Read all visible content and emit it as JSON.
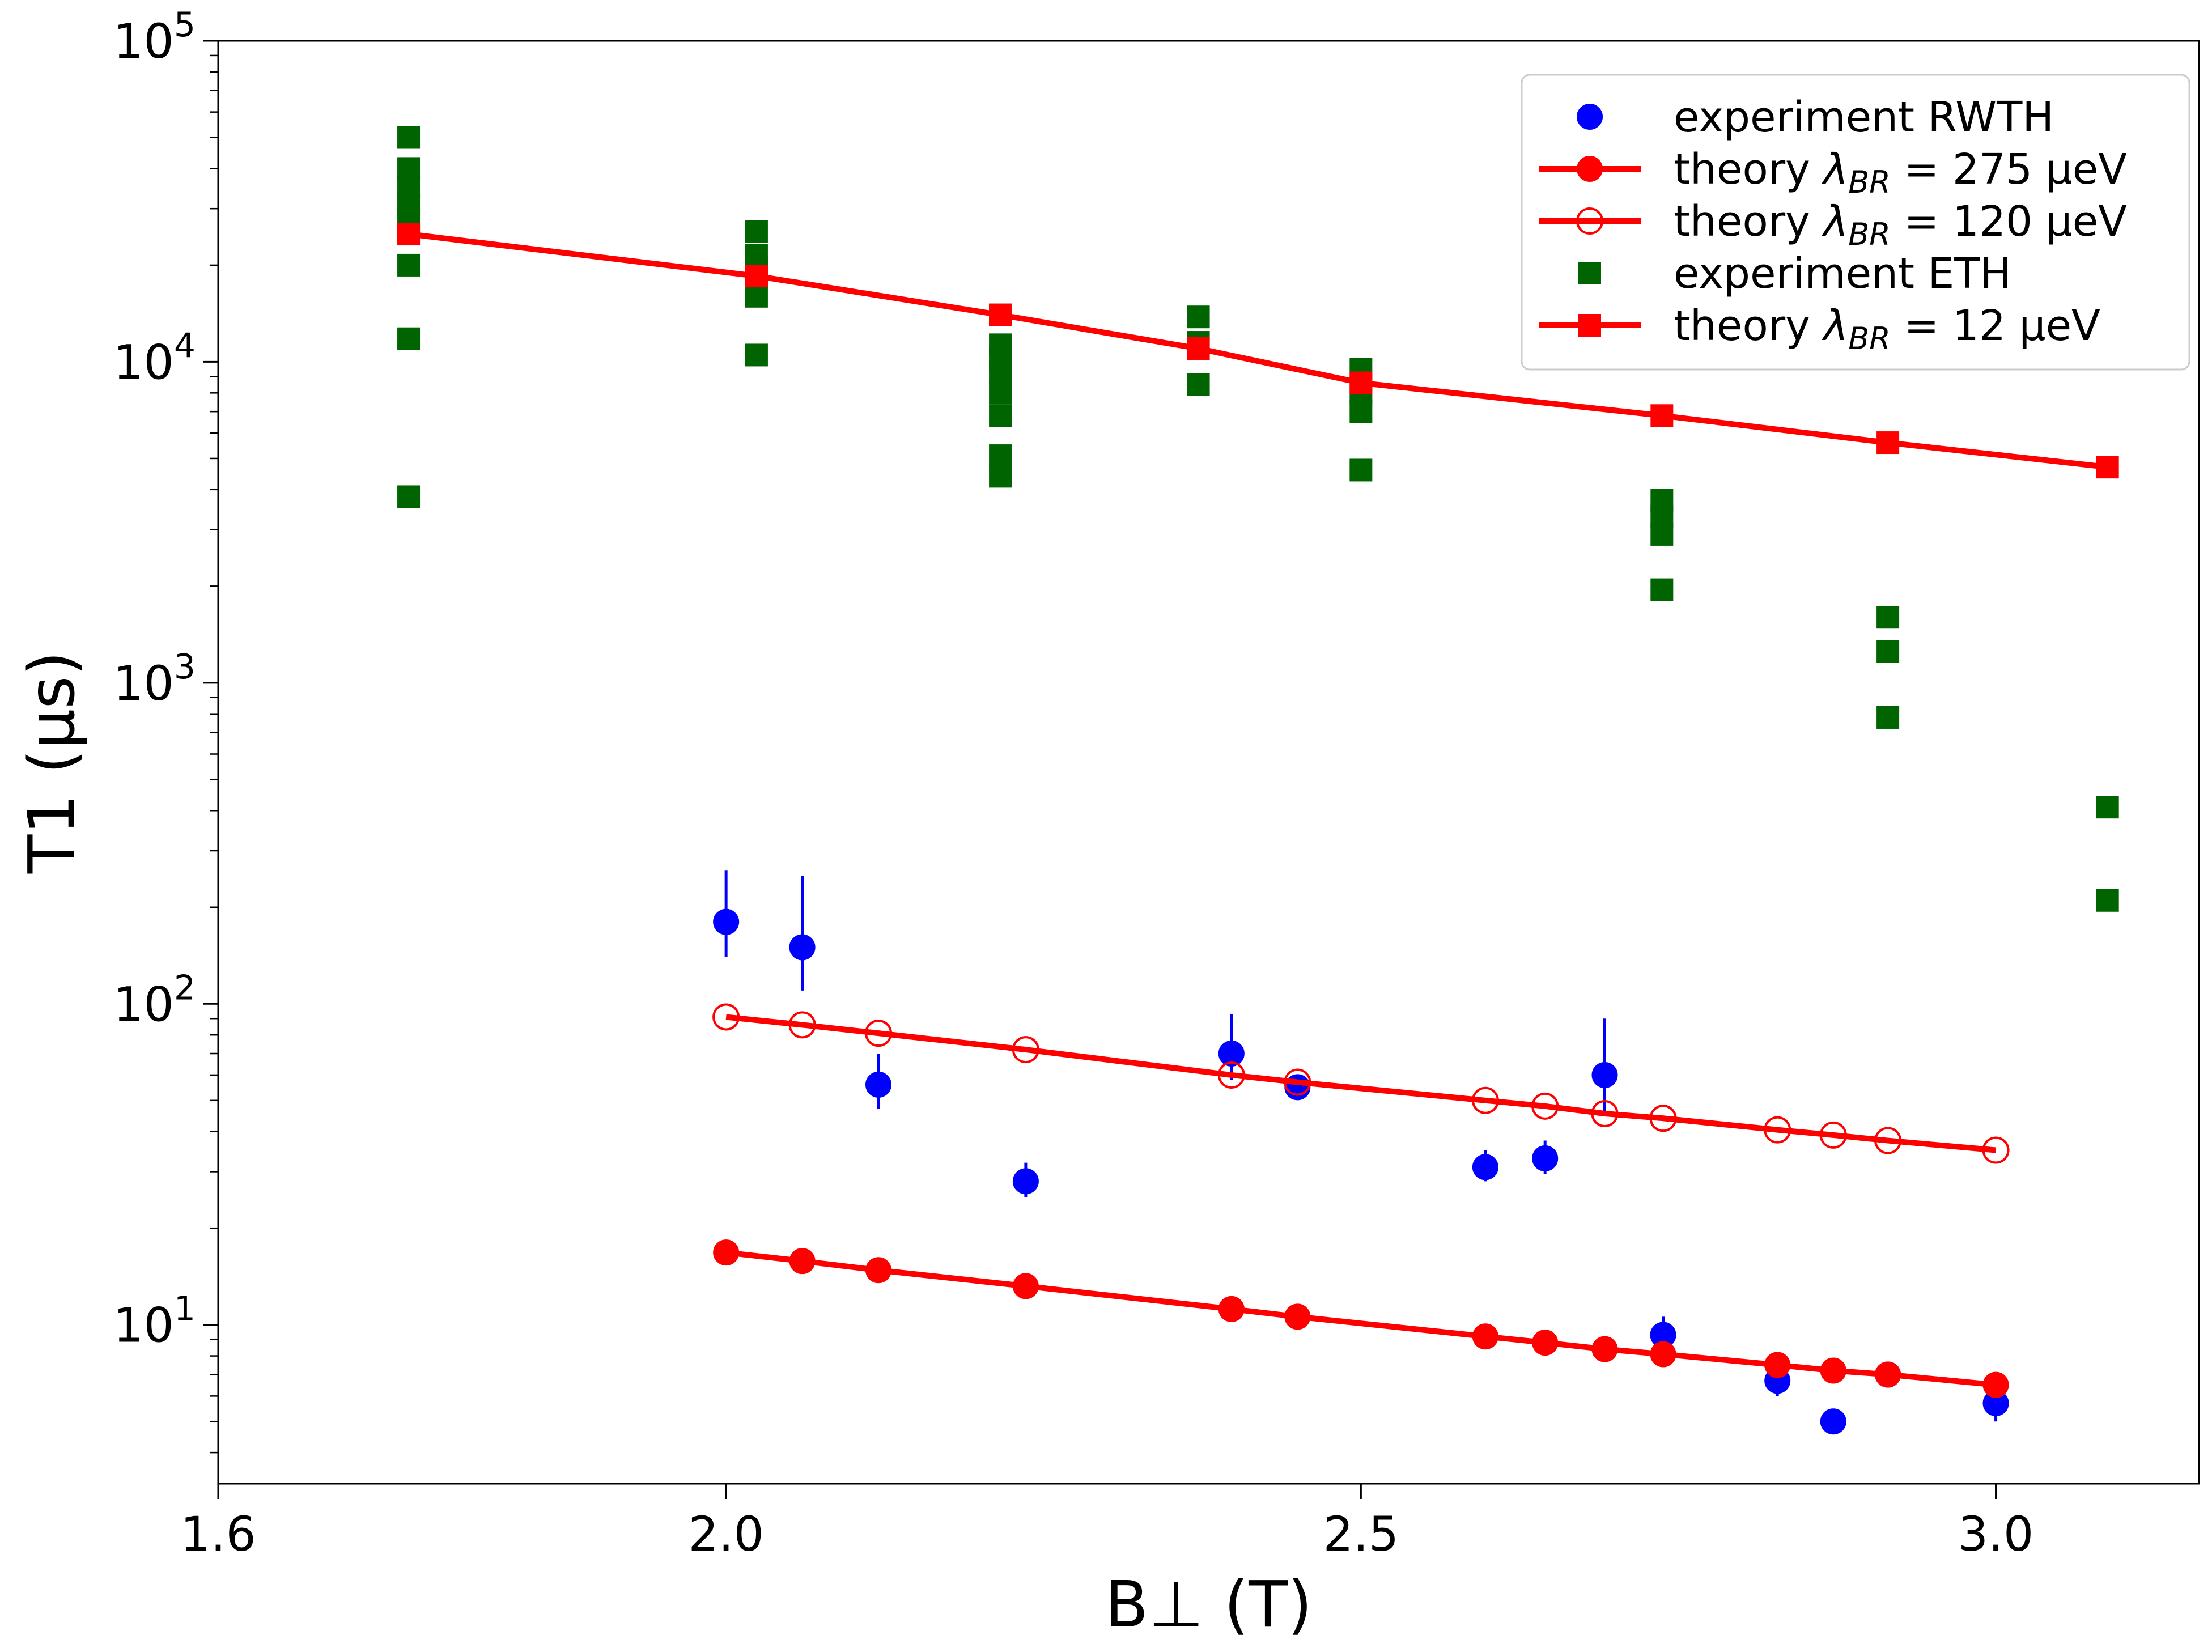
{
  "chart_data": {
    "type": "scatter",
    "title": "",
    "xlabel": "B⊥ (T)",
    "ylabel": "T1 (μs)",
    "xscale": "linear",
    "yscale": "log",
    "xlim": [
      1.6,
      3.16
    ],
    "ylim": [
      3.2,
      100000
    ],
    "xticks": [
      1.6,
      2.0,
      2.5,
      3.0
    ],
    "xtick_labels": [
      "1.6",
      "2.0",
      "2.5",
      "3.0"
    ],
    "yticks": [
      10,
      100,
      1000,
      10000,
      100000
    ],
    "ytick_labels": [
      {
        "base": "10",
        "exp": "1"
      },
      {
        "base": "10",
        "exp": "2"
      },
      {
        "base": "10",
        "exp": "3"
      },
      {
        "base": "10",
        "exp": "4"
      },
      {
        "base": "10",
        "exp": "5"
      }
    ],
    "legend_position": "top-right",
    "series": [
      {
        "name": "experiment RWTH",
        "legend_label": {
          "text": "experiment RWTH"
        },
        "marker": "circle",
        "filled": true,
        "line": false,
        "color": "#0000ff",
        "points": [
          {
            "x": 2.0,
            "y": 180,
            "ylo": 140,
            "yhi": 260
          },
          {
            "x": 2.06,
            "y": 150,
            "ylo": 110,
            "yhi": 250
          },
          {
            "x": 2.12,
            "y": 56,
            "ylo": 47,
            "yhi": 70
          },
          {
            "x": 2.236,
            "y": 28,
            "ylo": 25,
            "yhi": 32
          },
          {
            "x": 2.398,
            "y": 70,
            "ylo": 58,
            "yhi": 93
          },
          {
            "x": 2.45,
            "y": 55,
            "ylo": 52,
            "yhi": 58
          },
          {
            "x": 2.598,
            "y": 31,
            "ylo": 28,
            "yhi": 35
          },
          {
            "x": 2.645,
            "y": 33,
            "ylo": 29.5,
            "yhi": 37.5
          },
          {
            "x": 2.692,
            "y": 60,
            "ylo": 45,
            "yhi": 90
          },
          {
            "x": 2.738,
            "y": 9.3,
            "ylo": 8.5,
            "yhi": 10.6
          },
          {
            "x": 2.828,
            "y": 6.7,
            "ylo": 6.0,
            "yhi": 7.4
          },
          {
            "x": 2.872,
            "y": 5.0,
            "ylo": 4.8,
            "yhi": 5.3
          },
          {
            "x": 2.915,
            "y": 7.0,
            "ylo": 6.6,
            "yhi": 7.5
          },
          {
            "x": 3.0,
            "y": 5.7,
            "ylo": 5.0,
            "yhi": 6.3
          }
        ]
      },
      {
        "name": "theory lambda_BR = 275 ueV",
        "legend_label": {
          "pre": "theory ",
          "sym": "λ",
          "sub": "BR",
          "post": " = 275 μeV"
        },
        "marker": "circle",
        "filled": true,
        "line": true,
        "color": "#ff0000",
        "x": [
          2.0,
          2.06,
          2.12,
          2.236,
          2.398,
          2.45,
          2.598,
          2.645,
          2.692,
          2.738,
          2.828,
          2.872,
          2.915,
          3.0
        ],
        "y": [
          16.8,
          15.8,
          14.8,
          13.2,
          11.2,
          10.6,
          9.2,
          8.8,
          8.4,
          8.1,
          7.5,
          7.2,
          7.0,
          6.5
        ]
      },
      {
        "name": "theory lambda_BR = 120 ueV",
        "legend_label": {
          "pre": "theory ",
          "sym": "λ",
          "sub": "BR",
          "post": " = 120 μeV"
        },
        "marker": "circle",
        "filled": false,
        "line": true,
        "color": "#ff0000",
        "x": [
          2.0,
          2.06,
          2.12,
          2.236,
          2.398,
          2.45,
          2.598,
          2.645,
          2.692,
          2.738,
          2.828,
          2.872,
          2.915,
          3.0
        ],
        "y": [
          91,
          86,
          81,
          72,
          60,
          57,
          50,
          48,
          45.5,
          44,
          40.5,
          39,
          37.5,
          35
        ]
      },
      {
        "name": "experiment ETH",
        "legend_label": {
          "text": "experiment ETH"
        },
        "marker": "square",
        "filled": true,
        "line": false,
        "color": "#006400",
        "x": [
          1.75,
          1.75,
          1.75,
          1.75,
          1.75,
          1.75,
          1.75,
          1.75,
          1.75,
          2.024,
          2.024,
          2.024,
          2.024,
          2.024,
          2.024,
          2.216,
          2.216,
          2.216,
          2.216,
          2.216,
          2.216,
          2.216,
          2.216,
          2.372,
          2.372,
          2.372,
          2.5,
          2.5,
          2.5,
          2.5,
          2.737,
          2.737,
          2.737,
          2.737,
          2.915,
          2.915,
          2.915,
          3.088,
          3.088
        ],
        "y": [
          50000,
          40000,
          35000,
          31000,
          28000,
          25000,
          20000,
          11800,
          3800,
          25500,
          21500,
          18500,
          16000,
          10500,
          19500,
          11300,
          9300,
          8000,
          6800,
          5100,
          4400,
          10200,
          14000,
          13800,
          11500,
          8500,
          9500,
          8000,
          7000,
          4600,
          3700,
          3300,
          2900,
          1950,
          1600,
          1250,
          780,
          410,
          210
        ]
      },
      {
        "name": "theory lambda_BR = 12 ueV",
        "legend_label": {
          "pre": "theory ",
          "sym": "λ",
          "sub": "BR",
          "post": " = 12 μeV"
        },
        "marker": "square",
        "filled": true,
        "line": true,
        "color": "#ff0000",
        "x": [
          1.75,
          2.024,
          2.216,
          2.372,
          2.5,
          2.737,
          2.915,
          3.088
        ],
        "y": [
          25000,
          18500,
          14000,
          11000,
          8600,
          6800,
          5600,
          4700
        ]
      }
    ]
  }
}
